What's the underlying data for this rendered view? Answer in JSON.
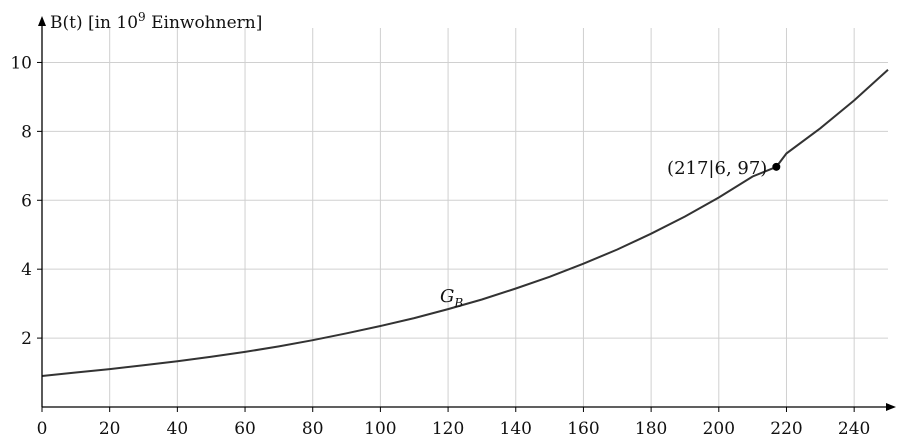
{
  "chart_data": {
    "type": "line",
    "title": "",
    "xlabel": "",
    "ylabel": {
      "prefix": "B(t) [in 10",
      "exponent": "9",
      "suffix": " Einwohnern]"
    },
    "xlim": [
      0,
      250
    ],
    "ylim": [
      0,
      11
    ],
    "xticks": [
      0,
      20,
      40,
      60,
      80,
      100,
      120,
      140,
      160,
      180,
      200,
      220,
      240
    ],
    "yticks": [
      2,
      4,
      6,
      8,
      10
    ],
    "grid": true,
    "series": [
      {
        "name": "G_B",
        "label_main": "G",
        "label_sub": "B",
        "x": [
          0,
          10,
          20,
          30,
          40,
          50,
          60,
          70,
          80,
          90,
          100,
          110,
          120,
          130,
          140,
          150,
          160,
          170,
          180,
          190,
          200,
          210,
          217,
          220,
          230,
          240,
          250
        ],
        "y": [
          0.9,
          1.0,
          1.1,
          1.21,
          1.33,
          1.46,
          1.6,
          1.76,
          1.94,
          2.14,
          2.35,
          2.58,
          2.84,
          3.12,
          3.44,
          3.78,
          4.16,
          4.57,
          5.03,
          5.53,
          6.08,
          6.69,
          6.97,
          7.36,
          8.09,
          8.9,
          9.79
        ]
      }
    ],
    "points": [
      {
        "x": 217,
        "y": 6.97,
        "label": "(217|6, 97)"
      }
    ]
  }
}
